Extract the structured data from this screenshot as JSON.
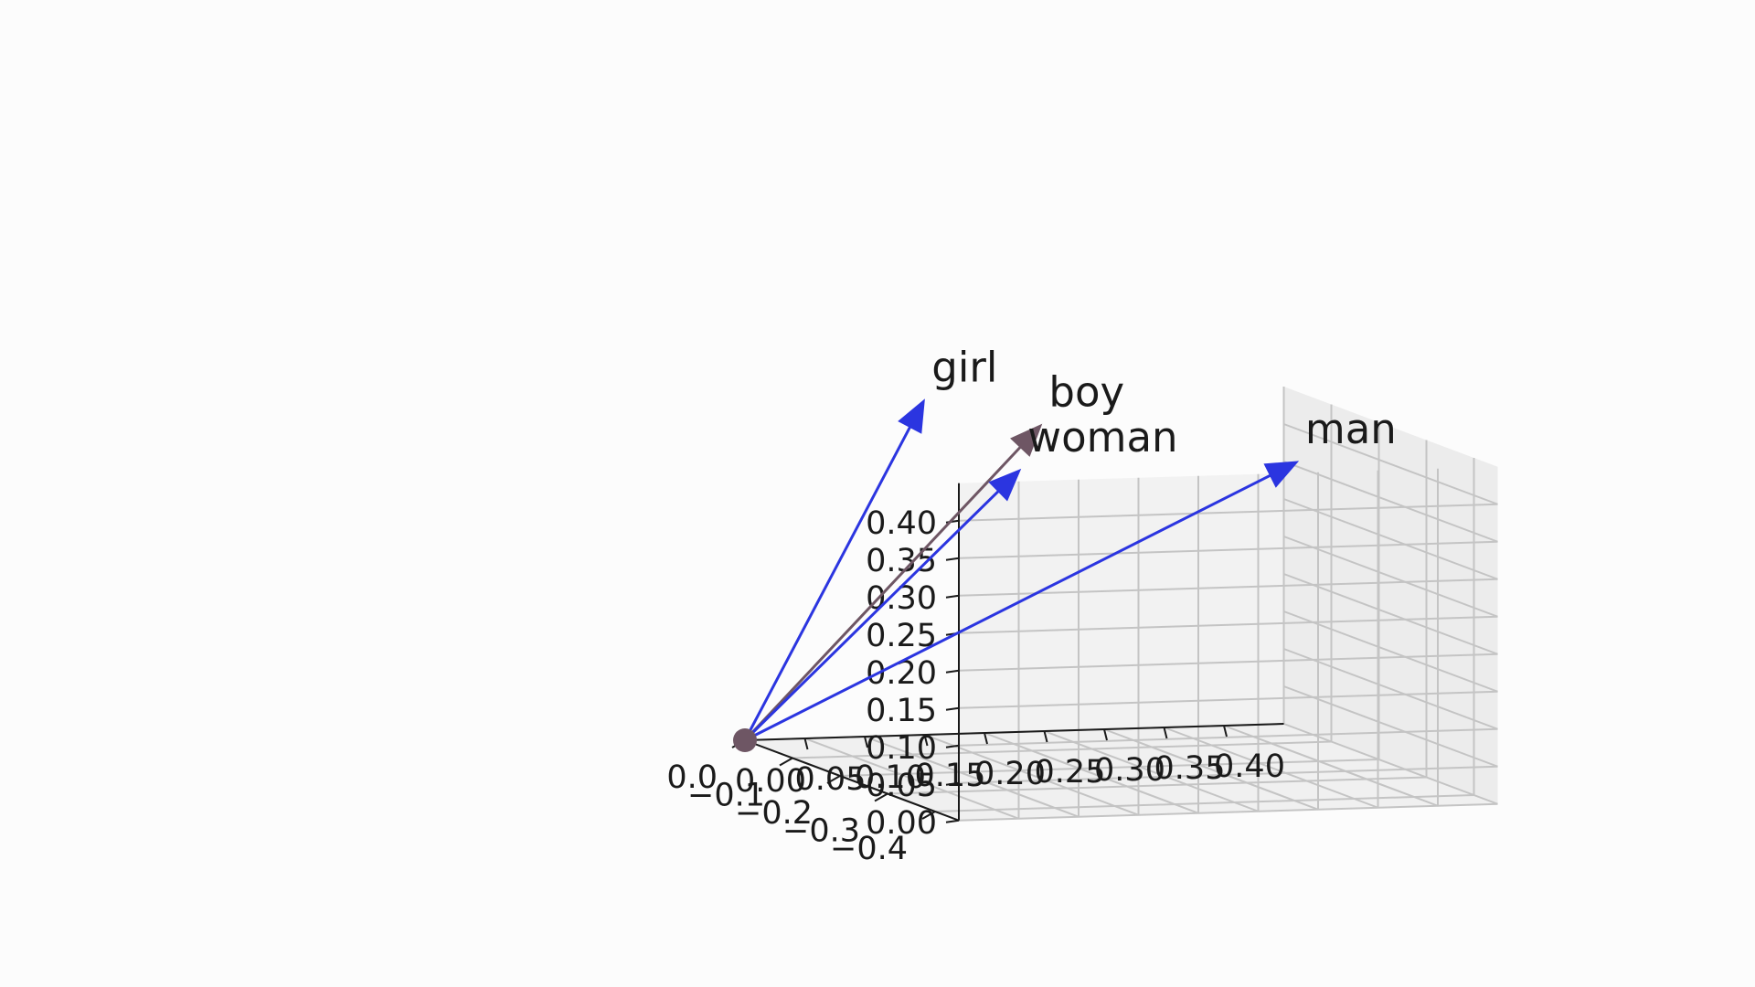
{
  "chart_data": {
    "type": "3d-quiver",
    "title": "",
    "xlabel": "",
    "ylabel": "",
    "zlabel": "",
    "grid": true,
    "origin": [
      0,
      0,
      0
    ],
    "x_ticks": [
      "0.00",
      "0.05",
      "0.10",
      "0.15",
      "0.20",
      "0.25",
      "0.30",
      "0.35",
      "0.40"
    ],
    "y_ticks": [
      "−0.4",
      "−0.3",
      "−0.2",
      "−0.1",
      "0.0"
    ],
    "z_ticks": [
      "0.00",
      "0.05",
      "0.10",
      "0.15",
      "0.20",
      "0.25",
      "0.30",
      "0.35",
      "0.40"
    ],
    "xlim": [
      0,
      0.45
    ],
    "ylim": [
      -0.45,
      0
    ],
    "zlim": [
      0,
      0.45
    ],
    "vectors": [
      {
        "label": "girl",
        "x": 0.13,
        "y": -0.05,
        "z": 0.46,
        "color": "#2b35e0"
      },
      {
        "label": "boy",
        "x": 0.2,
        "y": -0.12,
        "z": 0.44,
        "color": "#6e5664"
      },
      {
        "label": "woman",
        "x": 0.23,
        "y": 0.0,
        "z": 0.35,
        "color": "#2b35e0"
      },
      {
        "label": "man",
        "x": 0.43,
        "y": -0.08,
        "z": 0.37,
        "color": "#2b35e0"
      }
    ],
    "origin_marker_color": "#6e5664"
  }
}
